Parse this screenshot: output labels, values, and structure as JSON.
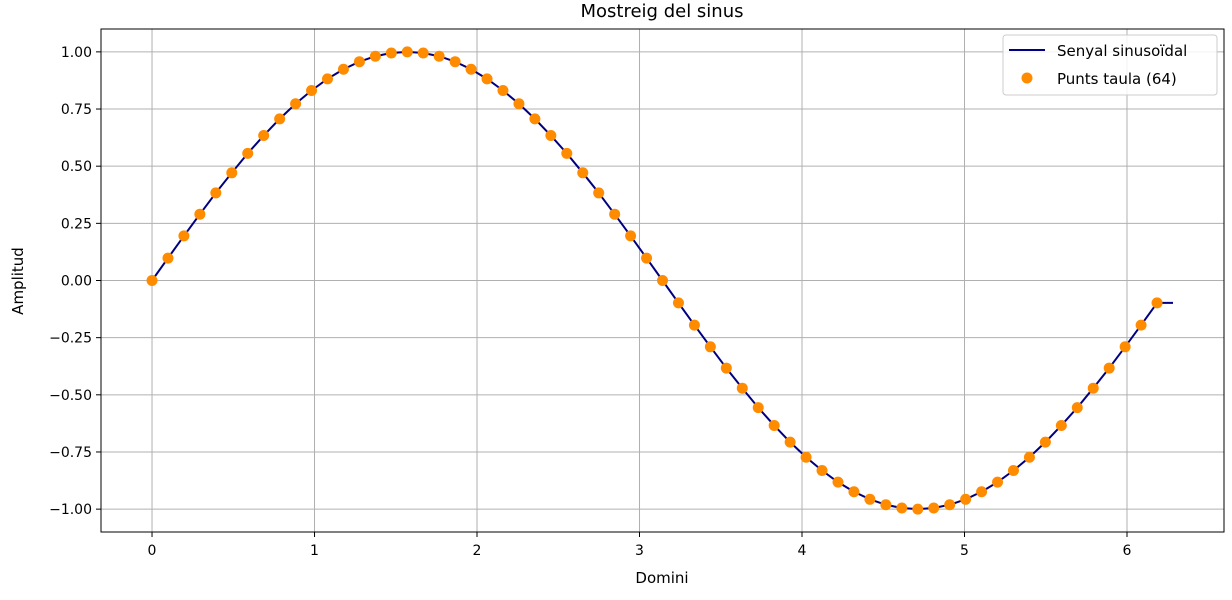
{
  "chart_data": {
    "type": "line",
    "title": "Mostreig del sinus",
    "xlabel": "Domini",
    "ylabel": "Amplitud",
    "xlim": [
      -0.314,
      6.597
    ],
    "ylim": [
      -1.1,
      1.1
    ],
    "xticks": [
      0,
      1,
      2,
      3,
      4,
      5,
      6
    ],
    "xtick_labels": [
      "0",
      "1",
      "2",
      "3",
      "4",
      "5",
      "6"
    ],
    "yticks": [
      -1.0,
      -0.75,
      -0.5,
      -0.25,
      0.0,
      0.25,
      0.5,
      0.75,
      1.0
    ],
    "ytick_labels": [
      "−1.00",
      "−0.75",
      "−0.50",
      "−0.25",
      "0.00",
      "0.25",
      "0.50",
      "0.75",
      "1.00"
    ],
    "grid": true,
    "legend_position": "top-right",
    "series": [
      {
        "name": "Senyal sinusoïdal",
        "kind": "line",
        "color": "#000080",
        "x": [
          0.0,
          0.0982,
          0.1963,
          0.2945,
          0.3927,
          0.4909,
          0.589,
          0.6872,
          0.7854,
          0.8836,
          0.9817,
          1.0799,
          1.1781,
          1.2763,
          1.3744,
          1.4726,
          1.5708,
          1.669,
          1.7671,
          1.8653,
          1.9635,
          2.0617,
          2.1598,
          2.258,
          2.3562,
          2.4544,
          2.5525,
          2.6507,
          2.7489,
          2.8471,
          2.9452,
          3.0434,
          3.1416,
          3.2398,
          3.3379,
          3.4361,
          3.5343,
          3.6325,
          3.7306,
          3.8288,
          3.927,
          4.0252,
          4.1233,
          4.2215,
          4.3197,
          4.4179,
          4.516,
          4.6142,
          4.7124,
          4.8106,
          4.9087,
          5.0069,
          5.1051,
          5.2033,
          5.3014,
          5.3996,
          5.4978,
          5.596,
          5.6941,
          5.7923,
          5.8905,
          5.9887,
          6.0868,
          6.185,
          6.2832
        ],
        "y": [
          0.0,
          0.098,
          0.195,
          0.29,
          0.383,
          0.471,
          0.556,
          0.634,
          0.707,
          0.773,
          0.831,
          0.882,
          0.924,
          0.957,
          0.981,
          0.995,
          1.0,
          0.995,
          0.981,
          0.957,
          0.924,
          0.882,
          0.831,
          0.773,
          0.707,
          0.634,
          0.556,
          0.471,
          0.383,
          0.29,
          0.195,
          0.098,
          0.0,
          -0.098,
          -0.195,
          -0.29,
          -0.383,
          -0.471,
          -0.556,
          -0.634,
          -0.707,
          -0.773,
          -0.831,
          -0.882,
          -0.924,
          -0.957,
          -0.981,
          -0.995,
          -1.0,
          -0.995,
          -0.981,
          -0.957,
          -0.924,
          -0.882,
          -0.831,
          -0.773,
          -0.707,
          -0.634,
          -0.556,
          -0.471,
          -0.383,
          -0.29,
          -0.195,
          -0.098,
          -0.098
        ]
      },
      {
        "name": "Punts taula (64)",
        "kind": "scatter",
        "color": "#ff8c00",
        "x": [
          0.0,
          0.0982,
          0.1963,
          0.2945,
          0.3927,
          0.4909,
          0.589,
          0.6872,
          0.7854,
          0.8836,
          0.9817,
          1.0799,
          1.1781,
          1.2763,
          1.3744,
          1.4726,
          1.5708,
          1.669,
          1.7671,
          1.8653,
          1.9635,
          2.0617,
          2.1598,
          2.258,
          2.3562,
          2.4544,
          2.5525,
          2.6507,
          2.7489,
          2.8471,
          2.9452,
          3.0434,
          3.1416,
          3.2398,
          3.3379,
          3.4361,
          3.5343,
          3.6325,
          3.7306,
          3.8288,
          3.927,
          4.0252,
          4.1233,
          4.2215,
          4.3197,
          4.4179,
          4.516,
          4.6142,
          4.7124,
          4.8106,
          4.9087,
          5.0069,
          5.1051,
          5.2033,
          5.3014,
          5.3996,
          5.4978,
          5.596,
          5.6941,
          5.7923,
          5.8905,
          5.9887,
          6.0868,
          6.185
        ],
        "y": [
          0.0,
          0.098,
          0.195,
          0.29,
          0.383,
          0.471,
          0.556,
          0.634,
          0.707,
          0.773,
          0.831,
          0.882,
          0.924,
          0.957,
          0.981,
          0.995,
          1.0,
          0.995,
          0.981,
          0.957,
          0.924,
          0.882,
          0.831,
          0.773,
          0.707,
          0.634,
          0.556,
          0.471,
          0.383,
          0.29,
          0.195,
          0.098,
          0.0,
          -0.098,
          -0.195,
          -0.29,
          -0.383,
          -0.471,
          -0.556,
          -0.634,
          -0.707,
          -0.773,
          -0.831,
          -0.882,
          -0.924,
          -0.957,
          -0.981,
          -0.995,
          -1.0,
          -0.995,
          -0.981,
          -0.957,
          -0.924,
          -0.882,
          -0.831,
          -0.773,
          -0.707,
          -0.634,
          -0.556,
          -0.471,
          -0.383,
          -0.29,
          -0.195,
          -0.098
        ]
      }
    ]
  }
}
